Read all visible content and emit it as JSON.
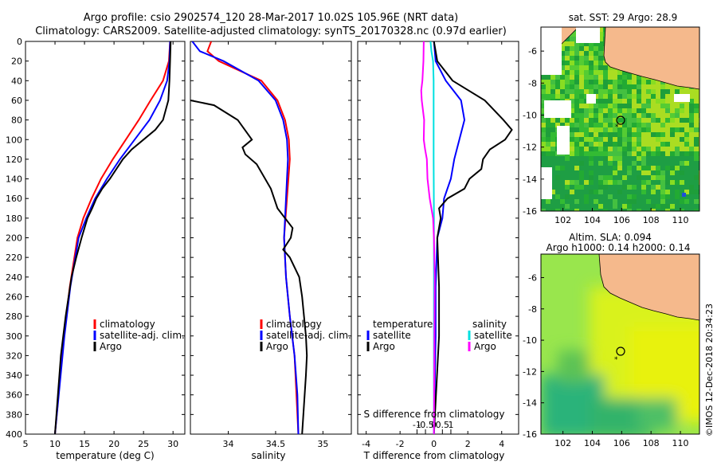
{
  "title_line1": "Argo profile: csio 2902574_120 28-Mar-2017 10.02S 105.96E (NRT data)",
  "title_line2": "Climatology: CARS2009. Satellite-adjusted climatology: synTS_20170328.nc (0.97d earlier)",
  "credit": "©IMOS 12-Dec-2018 20:34:23",
  "colors": {
    "climatology": "#ff0000",
    "satellite": "#0000ff",
    "argo": "#000000",
    "salinity_satellite": "#00e0e0",
    "salinity_argo": "#ff00ff",
    "land": "#f5b98c"
  },
  "chart_data": [
    {
      "type": "line",
      "title": "",
      "xlabel": "temperature (deg C)",
      "ylabel": "",
      "xlim": [
        5,
        32
      ],
      "ylim": [
        400,
        0
      ],
      "xticks": [
        "5",
        "10",
        "15",
        "20",
        "25",
        "30"
      ],
      "xtick_values": [
        5,
        10,
        15,
        20,
        25,
        30
      ],
      "yticks": [
        "0",
        "20",
        "40",
        "60",
        "80",
        "100",
        "120",
        "140",
        "160",
        "180",
        "200",
        "220",
        "240",
        "260",
        "280",
        "300",
        "320",
        "340",
        "360",
        "380",
        "400"
      ],
      "legend": [
        "climatology",
        "satellite-adj. clim.",
        "Argo"
      ],
      "series": [
        {
          "name": "climatology",
          "depth": [
            0,
            20,
            40,
            60,
            80,
            100,
            120,
            140,
            160,
            180,
            200,
            250,
            300,
            400
          ],
          "values": [
            29.5,
            29.3,
            28.3,
            26.2,
            24.2,
            22.0,
            19.8,
            17.8,
            16.2,
            14.8,
            13.8,
            12.5,
            11.5,
            10.0
          ]
        },
        {
          "name": "satellite-adj. clim.",
          "depth": [
            0,
            20,
            40,
            60,
            80,
            100,
            120,
            140,
            160,
            180,
            200,
            250,
            300,
            400
          ],
          "values": [
            29.5,
            29.4,
            29.0,
            27.8,
            26.0,
            23.5,
            21.0,
            18.8,
            16.8,
            15.3,
            14.0,
            12.6,
            11.6,
            10.0
          ]
        },
        {
          "name": "Argo",
          "depth": [
            0,
            20,
            40,
            60,
            80,
            90,
            100,
            110,
            120,
            140,
            150,
            160,
            170,
            180,
            200,
            220,
            240,
            280,
            320,
            400
          ],
          "values": [
            29.6,
            29.5,
            29.4,
            29.2,
            28.3,
            27.0,
            25.0,
            23.0,
            21.5,
            19.3,
            18.0,
            17.0,
            16.3,
            15.5,
            14.5,
            13.6,
            12.8,
            11.8,
            11.0,
            10.0
          ]
        }
      ]
    },
    {
      "type": "line",
      "title": "",
      "xlabel": "salinity",
      "ylabel": "",
      "xlim": [
        33.6,
        35.3
      ],
      "ylim": [
        400,
        0
      ],
      "xticks": [
        "34",
        "34.5",
        "35"
      ],
      "xtick_values": [
        34,
        34.5,
        35
      ],
      "legend": [
        "climatology",
        "satellite-adj. clim.",
        "Argo"
      ],
      "series": [
        {
          "name": "climatology",
          "depth": [
            0,
            10,
            20,
            40,
            60,
            80,
            100,
            120,
            160,
            200,
            240,
            280,
            320,
            360,
            400
          ],
          "values": [
            33.82,
            33.78,
            33.9,
            34.35,
            34.52,
            34.6,
            34.64,
            34.65,
            34.62,
            34.59,
            34.61,
            34.65,
            34.7,
            34.72,
            34.74
          ]
        },
        {
          "name": "satellite-adj. clim.",
          "depth": [
            0,
            10,
            20,
            40,
            60,
            80,
            100,
            120,
            160,
            200,
            240,
            280,
            320,
            360,
            400
          ],
          "values": [
            33.62,
            33.7,
            33.95,
            34.32,
            34.5,
            34.58,
            34.62,
            34.63,
            34.61,
            34.59,
            34.61,
            34.65,
            34.7,
            34.73,
            34.74
          ]
        },
        {
          "name": "Argo",
          "depth": [
            60,
            65,
            80,
            100,
            108,
            115,
            125,
            150,
            170,
            180,
            190,
            200,
            212,
            220,
            240,
            260,
            280,
            300,
            320,
            340,
            400
          ],
          "values": [
            33.6,
            33.85,
            34.1,
            34.25,
            34.15,
            34.18,
            34.3,
            34.45,
            34.52,
            34.6,
            34.68,
            34.66,
            34.58,
            34.65,
            34.75,
            34.78,
            34.8,
            34.82,
            34.83,
            34.82,
            34.78
          ]
        }
      ]
    },
    {
      "type": "line",
      "title": "",
      "xlabel": "T difference from climatology",
      "xlabel_top": "S difference from climatology",
      "ylabel": "",
      "xlim": [
        -4.5,
        5
      ],
      "ylim": [
        400,
        0
      ],
      "xticks": [
        "-4",
        "-2",
        "0",
        "2",
        "4"
      ],
      "xtick_values": [
        -4,
        -2,
        0,
        2,
        4
      ],
      "xticks_salinity": [
        "-1",
        "-0.5",
        "0",
        "0.5",
        "1"
      ],
      "xtick_values_salinity": [
        -1,
        -0.5,
        0,
        0.5,
        1
      ],
      "legend_temperature": {
        "heading": "temperature",
        "items": [
          "satellite",
          "Argo"
        ]
      },
      "legend_salinity": {
        "heading": "salinity",
        "items": [
          "satellite",
          "Argo"
        ]
      },
      "series": [
        {
          "name": "T satellite",
          "unit": "T",
          "depth": [
            0,
            20,
            40,
            60,
            80,
            100,
            120,
            140,
            160,
            180,
            200,
            250,
            300,
            400
          ],
          "values": [
            0,
            0.1,
            0.7,
            1.6,
            1.8,
            1.5,
            1.2,
            1.0,
            0.6,
            0.5,
            0.2,
            0.1,
            0.1,
            0.0
          ]
        },
        {
          "name": "T Argo",
          "unit": "T",
          "depth": [
            0,
            20,
            40,
            60,
            80,
            90,
            100,
            110,
            120,
            130,
            140,
            150,
            160,
            170,
            180,
            200,
            250,
            300,
            400
          ],
          "values": [
            0,
            0.2,
            1.1,
            3.0,
            4.1,
            4.6,
            4.2,
            3.3,
            2.9,
            2.8,
            2.1,
            1.8,
            0.8,
            0.3,
            0.4,
            0.2,
            0.3,
            0.3,
            0.0
          ]
        },
        {
          "name": "S satellite",
          "unit": "S",
          "depth": [
            0,
            10,
            20,
            40,
            60,
            80,
            120,
            180,
            240,
            300,
            400
          ],
          "values": [
            -0.2,
            -0.15,
            -0.05,
            -0.02,
            -0.02,
            -0.02,
            -0.02,
            0.0,
            0.0,
            0.0,
            0.0
          ]
        },
        {
          "name": "S Argo",
          "unit": "S",
          "depth": [
            0,
            20,
            40,
            50,
            60,
            80,
            100,
            110,
            120,
            140,
            160,
            180,
            200,
            240,
            300,
            400
          ],
          "values": [
            -0.6,
            -0.62,
            -0.68,
            -0.75,
            -0.72,
            -0.58,
            -0.6,
            -0.52,
            -0.42,
            -0.38,
            -0.25,
            -0.05,
            0.0,
            0.05,
            0.03,
            0.0
          ]
        }
      ]
    },
    {
      "type": "heatmap",
      "title": "sat. SST: 29 Argo: 28.9",
      "xlim": [
        100.5,
        111.3
      ],
      "ylim": [
        -16,
        -4.5
      ],
      "xticks": [
        "102",
        "104",
        "106",
        "108",
        "110"
      ],
      "xtick_values": [
        102,
        104,
        106,
        108,
        110
      ],
      "yticks": [
        "-6",
        "-8",
        "-10",
        "-12",
        "-14",
        "-16"
      ],
      "ytick_values": [
        -6,
        -8,
        -10,
        -12,
        -14,
        -16
      ],
      "argo_position": {
        "lon": 105.96,
        "lat": -10.02
      }
    },
    {
      "type": "heatmap",
      "title_line1": "Altim. SLA: 0.094",
      "title_line2": "Argo h1000: 0.14 h2000: 0.14",
      "xlim": [
        100.5,
        111.3
      ],
      "ylim": [
        -16,
        -4.5
      ],
      "xticks": [
        "102",
        "104",
        "106",
        "108",
        "110"
      ],
      "xtick_values": [
        102,
        104,
        106,
        108,
        110
      ],
      "yticks": [
        "-6",
        "-8",
        "-10",
        "-12",
        "-14",
        "-16"
      ],
      "ytick_values": [
        -6,
        -8,
        -10,
        -12,
        -14,
        -16
      ],
      "argo_position": {
        "lon": 105.96,
        "lat": -10.02
      }
    }
  ]
}
